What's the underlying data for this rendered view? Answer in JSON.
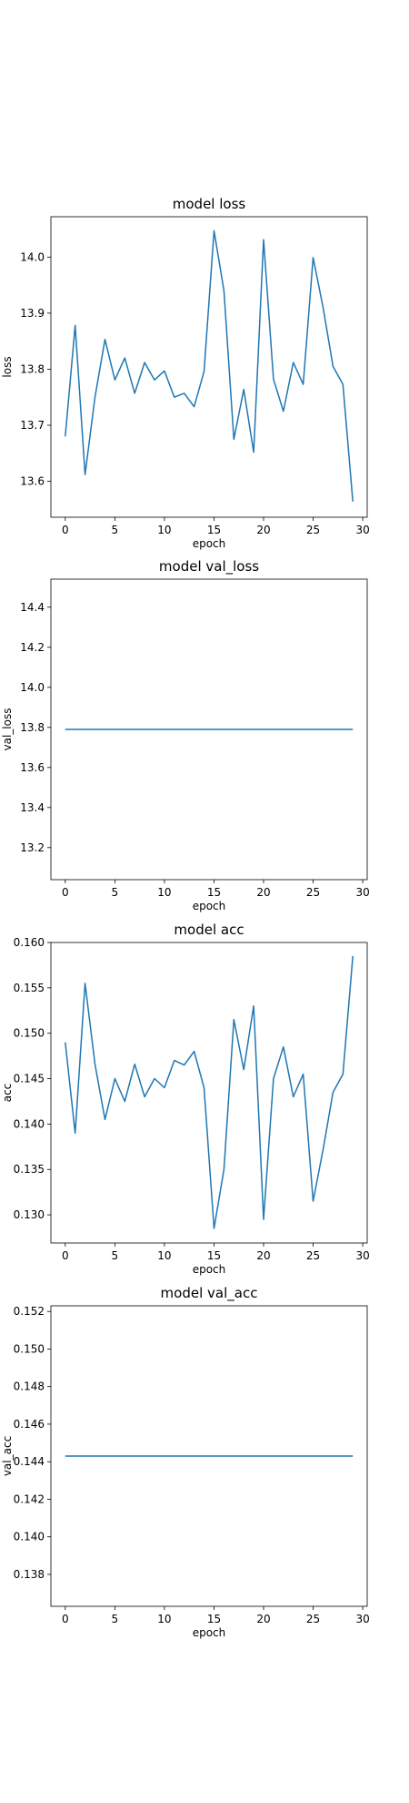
{
  "chart_data": [
    {
      "type": "line",
      "title": "model loss",
      "xlabel": "epoch",
      "ylabel": "loss",
      "xlim": [
        -1.45,
        30.45
      ],
      "ylim": [
        13.536,
        14.072
      ],
      "xticks": [
        0,
        5,
        10,
        15,
        20,
        25,
        30
      ],
      "yticks": [
        13.6,
        13.7,
        13.8,
        13.9,
        14.0
      ],
      "ytick_labels": [
        "13.6",
        "13.7",
        "13.8",
        "13.9",
        "14.0"
      ],
      "grid": false,
      "color": "#1f77b4",
      "x": [
        0,
        1,
        2,
        3,
        4,
        5,
        6,
        7,
        8,
        9,
        10,
        11,
        12,
        13,
        14,
        15,
        16,
        17,
        18,
        19,
        20,
        21,
        22,
        23,
        24,
        25,
        26,
        27,
        28,
        29
      ],
      "y": [
        13.68,
        13.878,
        13.612,
        13.75,
        13.853,
        13.781,
        13.82,
        13.757,
        13.812,
        13.781,
        13.797,
        13.75,
        13.757,
        13.733,
        13.796,
        14.047,
        13.94,
        13.675,
        13.764,
        13.652,
        14.031,
        13.782,
        13.725,
        13.812,
        13.773,
        13.999,
        13.91,
        13.805,
        13.773,
        13.564
      ]
    },
    {
      "type": "line",
      "title": "model val_loss",
      "xlabel": "epoch",
      "ylabel": "val_loss",
      "xlim": [
        -1.45,
        30.45
      ],
      "ylim": [
        13.04,
        14.54
      ],
      "xticks": [
        0,
        5,
        10,
        15,
        20,
        25,
        30
      ],
      "yticks": [
        13.2,
        13.4,
        13.6,
        13.8,
        14.0,
        14.2,
        14.4
      ],
      "ytick_labels": [
        "13.2",
        "13.4",
        "13.6",
        "13.8",
        "14.0",
        "14.2",
        "14.4"
      ],
      "grid": false,
      "color": "#1f77b4",
      "x": [
        0,
        1,
        2,
        3,
        4,
        5,
        6,
        7,
        8,
        9,
        10,
        11,
        12,
        13,
        14,
        15,
        16,
        17,
        18,
        19,
        20,
        21,
        22,
        23,
        24,
        25,
        26,
        27,
        28,
        29
      ],
      "y": [
        13.79,
        13.79,
        13.79,
        13.79,
        13.79,
        13.79,
        13.79,
        13.79,
        13.79,
        13.79,
        13.79,
        13.79,
        13.79,
        13.79,
        13.79,
        13.79,
        13.79,
        13.79,
        13.79,
        13.79,
        13.79,
        13.79,
        13.79,
        13.79,
        13.79,
        13.79,
        13.79,
        13.79,
        13.79,
        13.79
      ]
    },
    {
      "type": "line",
      "title": "model acc",
      "xlabel": "epoch",
      "ylabel": "acc",
      "xlim": [
        -1.45,
        30.45
      ],
      "ylim": [
        0.1269,
        0.16
      ],
      "xticks": [
        0,
        5,
        10,
        15,
        20,
        25,
        30
      ],
      "yticks": [
        0.13,
        0.135,
        0.14,
        0.145,
        0.15,
        0.155,
        0.16
      ],
      "ytick_labels": [
        "0.130",
        "0.135",
        "0.140",
        "0.145",
        "0.150",
        "0.155",
        "0.160"
      ],
      "grid": false,
      "color": "#1f77b4",
      "x": [
        0,
        1,
        2,
        3,
        4,
        5,
        6,
        7,
        8,
        9,
        10,
        11,
        12,
        13,
        14,
        15,
        16,
        17,
        18,
        19,
        20,
        21,
        22,
        23,
        24,
        25,
        26,
        27,
        28,
        29
      ],
      "y": [
        0.149,
        0.139,
        0.1555,
        0.1466,
        0.1405,
        0.145,
        0.1425,
        0.1466,
        0.143,
        0.145,
        0.144,
        0.147,
        0.1465,
        0.148,
        0.144,
        0.1285,
        0.135,
        0.1515,
        0.146,
        0.153,
        0.1295,
        0.145,
        0.1485,
        0.143,
        0.1455,
        0.1315,
        0.1372,
        0.1435,
        0.1455,
        0.1585
      ]
    },
    {
      "type": "line",
      "title": "model val_acc",
      "xlabel": "epoch",
      "ylabel": "val_acc",
      "xlim": [
        -1.45,
        30.45
      ],
      "ylim": [
        0.1363,
        0.1523
      ],
      "xticks": [
        0,
        5,
        10,
        15,
        20,
        25,
        30
      ],
      "yticks": [
        0.138,
        0.14,
        0.142,
        0.144,
        0.146,
        0.148,
        0.15,
        0.152
      ],
      "ytick_labels": [
        "0.138",
        "0.140",
        "0.142",
        "0.144",
        "0.146",
        "0.148",
        "0.150",
        "0.152"
      ],
      "grid": false,
      "color": "#1f77b4",
      "x": [
        0,
        1,
        2,
        3,
        4,
        5,
        6,
        7,
        8,
        9,
        10,
        11,
        12,
        13,
        14,
        15,
        16,
        17,
        18,
        19,
        20,
        21,
        22,
        23,
        24,
        25,
        26,
        27,
        28,
        29
      ],
      "y": [
        0.1443,
        0.1443,
        0.1443,
        0.1443,
        0.1443,
        0.1443,
        0.1443,
        0.1443,
        0.1443,
        0.1443,
        0.1443,
        0.1443,
        0.1443,
        0.1443,
        0.1443,
        0.1443,
        0.1443,
        0.1443,
        0.1443,
        0.1443,
        0.1443,
        0.1443,
        0.1443,
        0.1443,
        0.1443,
        0.1443,
        0.1443,
        0.1443,
        0.1443,
        0.1443
      ]
    }
  ]
}
